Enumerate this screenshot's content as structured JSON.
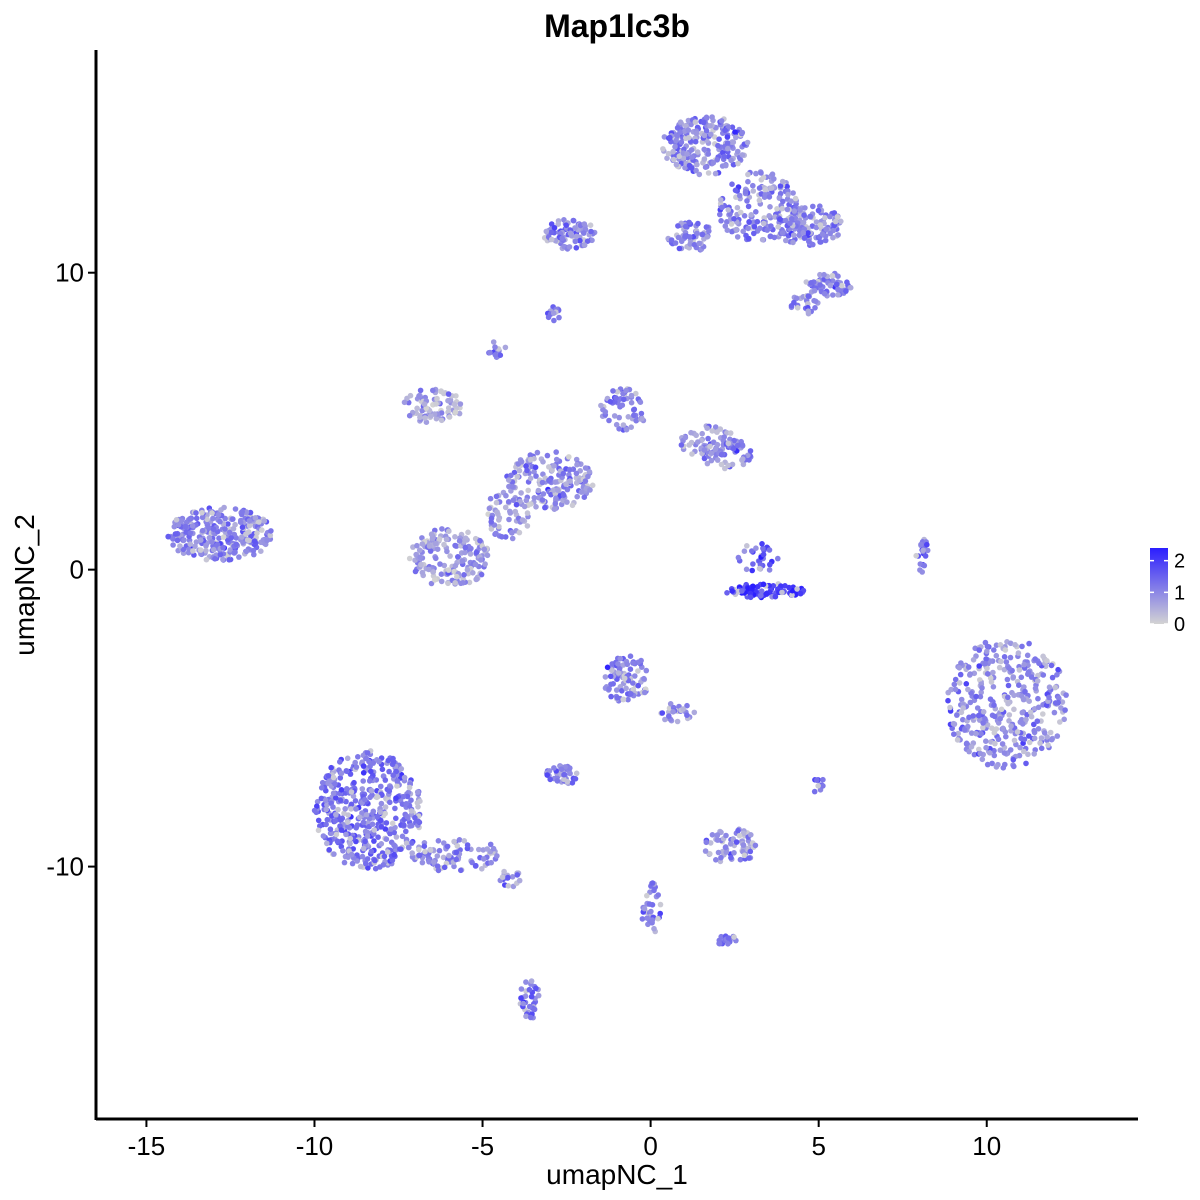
{
  "chart_data": {
    "type": "scatter",
    "title": "Map1lc3b",
    "xlabel": "umapNC_1",
    "ylabel": "umapNC_2",
    "xlim": [
      -16.5,
      14.5
    ],
    "ylim": [
      -18.5,
      17.5
    ],
    "x_ticks": [
      -15,
      -10,
      -5,
      0,
      5,
      10
    ],
    "x_tick_labels": [
      "-15",
      "-10",
      "-5",
      "0",
      "5",
      "10"
    ],
    "y_ticks": [
      -10,
      0,
      10
    ],
    "y_tick_labels": [
      "-10",
      "0",
      "10"
    ],
    "grid": false,
    "legend_position": "right",
    "color_scale": {
      "low_color": "#d3d3d3",
      "high_color": "#2b1eff",
      "range": [
        0,
        2.4
      ],
      "ticks": [
        0,
        1,
        2
      ],
      "tick_labels": [
        "0",
        "1",
        "2"
      ]
    },
    "clusters": [
      {
        "cx": 1.6,
        "cy": 14.3,
        "rx": 1.3,
        "ry": 1.0,
        "n": 220,
        "mean": 1.0
      },
      {
        "cx": 3.2,
        "cy": 12.2,
        "rx": 1.2,
        "ry": 1.2,
        "n": 170,
        "mean": 1.05
      },
      {
        "cx": 4.7,
        "cy": 11.6,
        "rx": 1.0,
        "ry": 0.7,
        "n": 130,
        "mean": 1.1
      },
      {
        "cx": -2.4,
        "cy": 11.3,
        "rx": 0.8,
        "ry": 0.5,
        "n": 90,
        "mean": 1.1
      },
      {
        "cx": 1.2,
        "cy": 11.2,
        "rx": 0.8,
        "ry": 0.5,
        "n": 60,
        "mean": 1.0
      },
      {
        "cx": 5.3,
        "cy": 9.6,
        "rx": 0.7,
        "ry": 0.4,
        "n": 60,
        "mean": 1.0
      },
      {
        "cx": 4.5,
        "cy": 8.9,
        "rx": 0.5,
        "ry": 0.35,
        "n": 25,
        "mean": 0.9
      },
      {
        "cx": -2.9,
        "cy": 8.6,
        "rx": 0.25,
        "ry": 0.25,
        "n": 14,
        "mean": 1.2
      },
      {
        "cx": -4.6,
        "cy": 7.4,
        "rx": 0.3,
        "ry": 0.3,
        "n": 16,
        "mean": 1.2
      },
      {
        "cx": -6.5,
        "cy": 5.5,
        "rx": 0.9,
        "ry": 0.6,
        "n": 80,
        "mean": 0.6
      },
      {
        "cx": -0.8,
        "cy": 5.4,
        "rx": 0.7,
        "ry": 0.7,
        "n": 60,
        "mean": 1.0
      },
      {
        "cx": 1.8,
        "cy": 4.3,
        "rx": 1.0,
        "ry": 0.6,
        "n": 60,
        "mean": 0.9
      },
      {
        "cx": 2.2,
        "cy": 3.9,
        "rx": 0.8,
        "ry": 0.5,
        "n": 60,
        "mean": 1.0
      },
      {
        "cx": -3.0,
        "cy": 3.0,
        "rx": 1.3,
        "ry": 1.0,
        "n": 180,
        "mean": 0.85
      },
      {
        "cx": -6.0,
        "cy": 0.4,
        "rx": 1.2,
        "ry": 1.0,
        "n": 180,
        "mean": 0.8
      },
      {
        "cx": -4.3,
        "cy": 1.8,
        "rx": 0.7,
        "ry": 0.8,
        "n": 60,
        "mean": 0.8
      },
      {
        "cx": -12.8,
        "cy": 1.2,
        "rx": 1.6,
        "ry": 0.9,
        "n": 300,
        "mean": 1.05
      },
      {
        "cx": 3.4,
        "cy": -0.7,
        "rx": 1.2,
        "ry": 0.25,
        "n": 90,
        "mean": 1.95
      },
      {
        "cx": 3.2,
        "cy": 0.4,
        "rx": 0.6,
        "ry": 0.5,
        "n": 30,
        "mean": 1.3
      },
      {
        "cx": 8.1,
        "cy": 0.4,
        "rx": 0.2,
        "ry": 0.7,
        "n": 20,
        "mean": 1.1
      },
      {
        "cx": 10.6,
        "cy": -4.5,
        "rx": 1.8,
        "ry": 2.2,
        "n": 380,
        "mean": 1.0
      },
      {
        "cx": -0.7,
        "cy": -3.7,
        "rx": 0.7,
        "ry": 0.8,
        "n": 90,
        "mean": 1.1
      },
      {
        "cx": 0.8,
        "cy": -4.8,
        "rx": 0.5,
        "ry": 0.4,
        "n": 25,
        "mean": 0.9
      },
      {
        "cx": -8.4,
        "cy": -8.1,
        "rx": 1.6,
        "ry": 2.0,
        "n": 480,
        "mean": 1.2
      },
      {
        "cx": -5.8,
        "cy": -9.6,
        "rx": 1.3,
        "ry": 0.6,
        "n": 90,
        "mean": 1.0
      },
      {
        "cx": -4.2,
        "cy": -10.4,
        "rx": 0.4,
        "ry": 0.3,
        "n": 18,
        "mean": 1.1
      },
      {
        "cx": -2.6,
        "cy": -6.9,
        "rx": 0.5,
        "ry": 0.35,
        "n": 40,
        "mean": 1.1
      },
      {
        "cx": 2.4,
        "cy": -9.3,
        "rx": 0.8,
        "ry": 0.6,
        "n": 70,
        "mean": 0.95
      },
      {
        "cx": 5.0,
        "cy": -7.3,
        "rx": 0.2,
        "ry": 0.3,
        "n": 12,
        "mean": 1.2
      },
      {
        "cx": 0.0,
        "cy": -11.4,
        "rx": 0.3,
        "ry": 0.9,
        "n": 35,
        "mean": 1.1
      },
      {
        "cx": 2.3,
        "cy": -12.5,
        "rx": 0.3,
        "ry": 0.2,
        "n": 16,
        "mean": 1.3
      },
      {
        "cx": -3.6,
        "cy": -14.5,
        "rx": 0.3,
        "ry": 0.7,
        "n": 35,
        "mean": 1.2
      }
    ]
  }
}
